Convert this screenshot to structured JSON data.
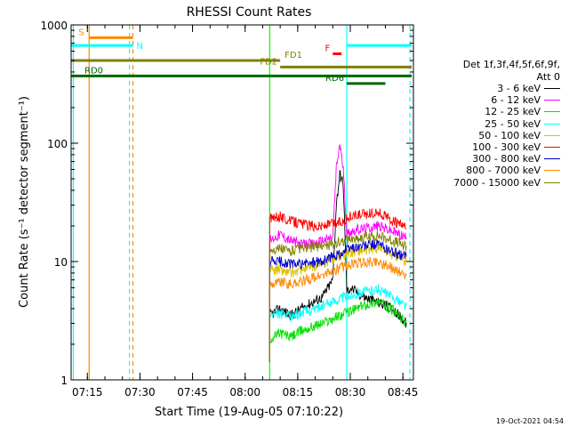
{
  "chart_data": {
    "type": "line",
    "title": "RHESSI Count Rates",
    "xlabel": "Start Time (19-Aug-05 07:10:22)",
    "ylabel": "Count Rate (s⁻¹ detector segment⁻¹)",
    "yscale": "log",
    "ylim": [
      1,
      1000
    ],
    "xlim": [
      "07:10:22",
      "08:48:00"
    ],
    "y_ticks": [
      "1",
      "10",
      "100",
      "1000"
    ],
    "x_ticks": [
      "07:15",
      "07:30",
      "07:45",
      "08:00",
      "08:15",
      "08:30",
      "08:45"
    ],
    "legend_header": [
      "Det 1f,3f,4f,5f,6f,9f,",
      "Att 0"
    ],
    "series": [
      {
        "name": "3 - 6 keV",
        "color": "#000000",
        "x": [
          "08:07",
          "08:10",
          "08:13",
          "08:16",
          "08:19",
          "08:22",
          "08:25",
          "08:26",
          "08:27",
          "08:28",
          "08:29",
          "08:30",
          "08:34",
          "08:38",
          "08:42",
          "08:46"
        ],
        "y": [
          3.5,
          4.0,
          3.5,
          4.0,
          4.5,
          5.0,
          7.0,
          30,
          55,
          45,
          5.5,
          6.0,
          5.0,
          4.5,
          4.0,
          3.0
        ]
      },
      {
        "name": "6 - 12 keV",
        "color": "#ff00ff",
        "x": [
          "08:07",
          "08:10",
          "08:13",
          "08:16",
          "08:19",
          "08:22",
          "08:25",
          "08:26",
          "08:27",
          "08:28",
          "08:29",
          "08:30",
          "08:34",
          "08:38",
          "08:42",
          "08:46"
        ],
        "y": [
          15,
          17,
          15,
          14,
          14,
          15,
          16,
          60,
          100,
          60,
          17,
          18,
          19,
          20,
          18,
          16
        ]
      },
      {
        "name": "12 - 25 keV",
        "color": "#00e000",
        "x": [
          "08:07",
          "08:10",
          "08:13",
          "08:16",
          "08:19",
          "08:22",
          "08:25",
          "08:28",
          "08:30",
          "08:34",
          "08:38",
          "08:42",
          "08:46"
        ],
        "y": [
          2.2,
          2.5,
          2.3,
          2.6,
          2.8,
          3.0,
          3.3,
          3.6,
          3.8,
          4.3,
          4.6,
          3.9,
          3.0
        ]
      },
      {
        "name": "25 - 50 keV",
        "color": "#00ffff",
        "x": [
          "08:07",
          "08:10",
          "08:13",
          "08:16",
          "08:19",
          "08:22",
          "08:25",
          "08:28",
          "08:30",
          "08:34",
          "08:38",
          "08:42",
          "08:46"
        ],
        "y": [
          3.5,
          3.6,
          3.4,
          3.7,
          3.9,
          4.2,
          4.6,
          5.0,
          5.2,
          5.6,
          5.8,
          5.0,
          4.2
        ]
      },
      {
        "name": "50 - 100 keV",
        "color": "#e0c000",
        "x": [
          "08:07",
          "08:10",
          "08:13",
          "08:16",
          "08:19",
          "08:22",
          "08:25",
          "08:28",
          "08:30",
          "08:34",
          "08:38",
          "08:42",
          "08:46"
        ],
        "y": [
          8.5,
          8.5,
          8.0,
          8.5,
          9.0,
          9.5,
          10.5,
          11.5,
          12.0,
          12.5,
          13.0,
          11.5,
          10.0
        ]
      },
      {
        "name": "100 - 300 keV",
        "color": "#ff0000",
        "x": [
          "08:07",
          "08:10",
          "08:13",
          "08:16",
          "08:19",
          "08:22",
          "08:25",
          "08:28",
          "08:30",
          "08:34",
          "08:38",
          "08:42",
          "08:46"
        ],
        "y": [
          23,
          24,
          22,
          21,
          20,
          20,
          21,
          22,
          24,
          25,
          26,
          22,
          19
        ]
      },
      {
        "name": "300 - 800 keV",
        "color": "#0000cc",
        "x": [
          "08:07",
          "08:10",
          "08:13",
          "08:16",
          "08:19",
          "08:22",
          "08:25",
          "08:28",
          "08:30",
          "08:34",
          "08:38",
          "08:42",
          "08:46"
        ],
        "y": [
          10,
          10,
          9.5,
          9.5,
          9.8,
          10,
          11,
          12,
          13,
          13.5,
          14,
          12,
          11
        ]
      },
      {
        "name": "800 - 7000 keV",
        "color": "#ff8800",
        "x": [
          "08:07",
          "08:10",
          "08:13",
          "08:16",
          "08:19",
          "08:22",
          "08:25",
          "08:28",
          "08:30",
          "08:34",
          "08:38",
          "08:42",
          "08:46"
        ],
        "y": [
          6.5,
          6.8,
          6.4,
          6.8,
          7.2,
          7.6,
          8.2,
          9.0,
          9.5,
          9.8,
          10,
          8.8,
          7.5
        ]
      },
      {
        "name": "7000 - 15000 keV",
        "color": "#808000",
        "x": [
          "08:07",
          "08:10",
          "08:13",
          "08:16",
          "08:19",
          "08:22",
          "08:25",
          "08:28",
          "08:30",
          "08:34",
          "08:38",
          "08:42",
          "08:46"
        ],
        "y": [
          12.5,
          12.8,
          12.3,
          12.8,
          13.2,
          13.6,
          14,
          15,
          15.5,
          16,
          16.5,
          15,
          13.5
        ]
      }
    ],
    "flag_bars": [
      {
        "label": "S",
        "color": "#ff8800",
        "start": "07:15:30",
        "end": "07:28:00",
        "y": 780
      },
      {
        "label": "N",
        "color": "#00ffff",
        "start": "07:10:22",
        "end": "07:28:00",
        "y": 670
      },
      {
        "label": "F",
        "color": "#ff0000",
        "start": "08:25:00",
        "end": "08:27:30",
        "y": 570
      },
      {
        "label": "",
        "color": "#00ffff",
        "start": "08:29:00",
        "end": "08:47:30",
        "y": 670
      },
      {
        "label": "FD1",
        "color": "#808000",
        "start": "07:10:22",
        "end": "08:10:00",
        "y": 500
      },
      {
        "label": "FD2",
        "color": "#808000",
        "start": "08:10:00",
        "end": "08:47:30",
        "y": 440
      },
      {
        "label": "RD0",
        "color": "#006600",
        "start": "07:10:22",
        "end": "08:47:30",
        "y": 370
      },
      {
        "label": "RD6",
        "color": "#006600",
        "start": "08:29:00",
        "end": "08:40:00",
        "y": 320
      }
    ],
    "vlines": [
      {
        "t": "07:11:00",
        "color": "#00ffff",
        "style": "solid"
      },
      {
        "t": "07:15:30",
        "color": "#ff8800",
        "style": "solid"
      },
      {
        "t": "07:27:00",
        "color": "#00ffff",
        "style": "dashed"
      },
      {
        "t": "07:28:00",
        "color": "#ff8800",
        "style": "dashed"
      },
      {
        "t": "08:07:00",
        "color": "#00ff00",
        "style": "solid"
      },
      {
        "t": "08:29:00",
        "color": "#00ffff",
        "style": "solid"
      },
      {
        "t": "08:47:00",
        "color": "#00ffff",
        "style": "dashed"
      }
    ],
    "timestamp": "19-Oct-2021 04:54"
  }
}
